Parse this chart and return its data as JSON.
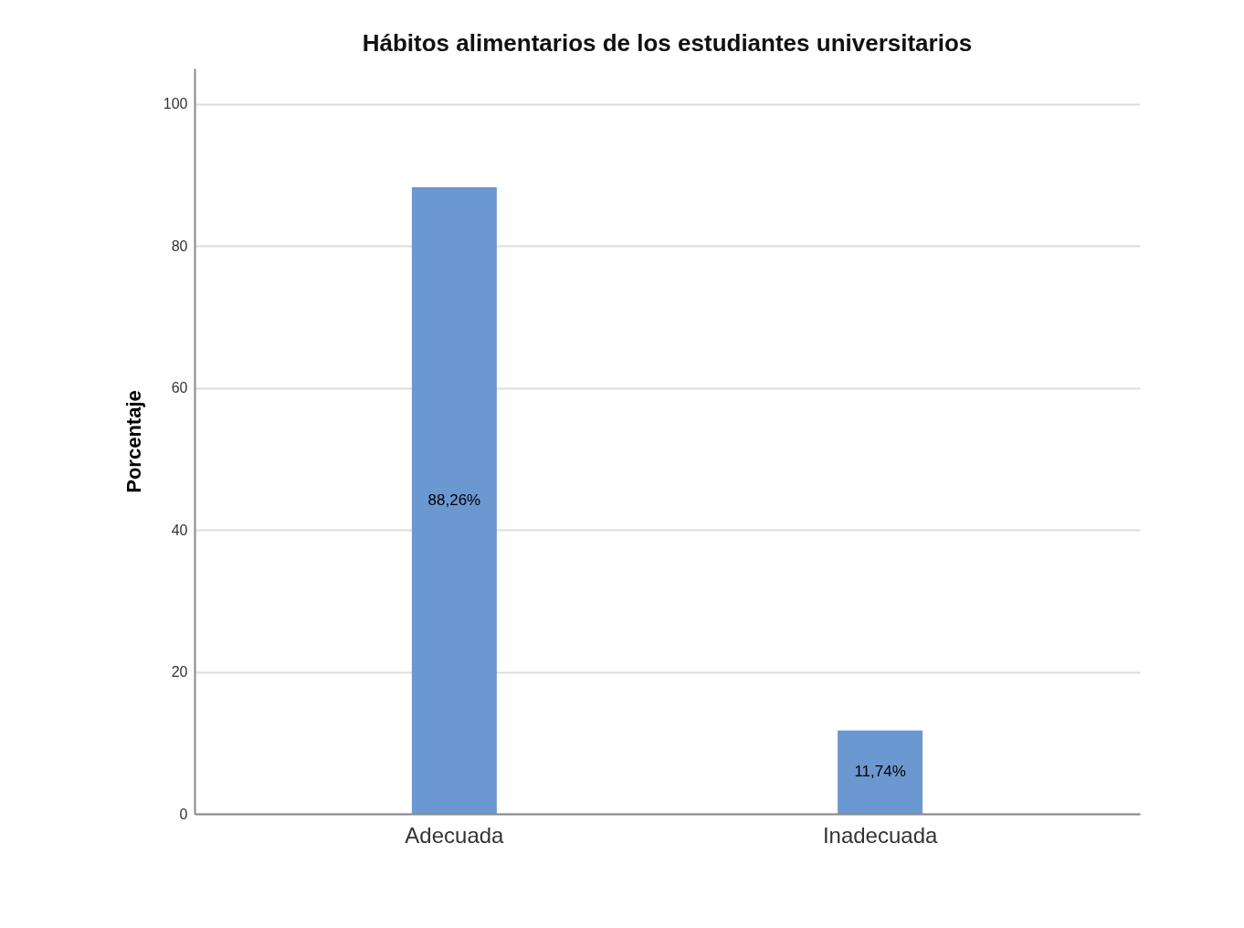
{
  "chart_data": {
    "type": "bar",
    "title": "Hábitos alimentarios de los estudiantes universitarios",
    "ylabel": "Porcentaje",
    "categories": [
      "Adecuada",
      "Inadecuada"
    ],
    "values": [
      88.26,
      11.74
    ],
    "value_labels": [
      "88,26%",
      "11,74%"
    ],
    "color": "#6b98d0",
    "ylim": [
      0,
      105
    ],
    "yticks": [
      0,
      20,
      40,
      60,
      80,
      100
    ],
    "grid": "y"
  }
}
